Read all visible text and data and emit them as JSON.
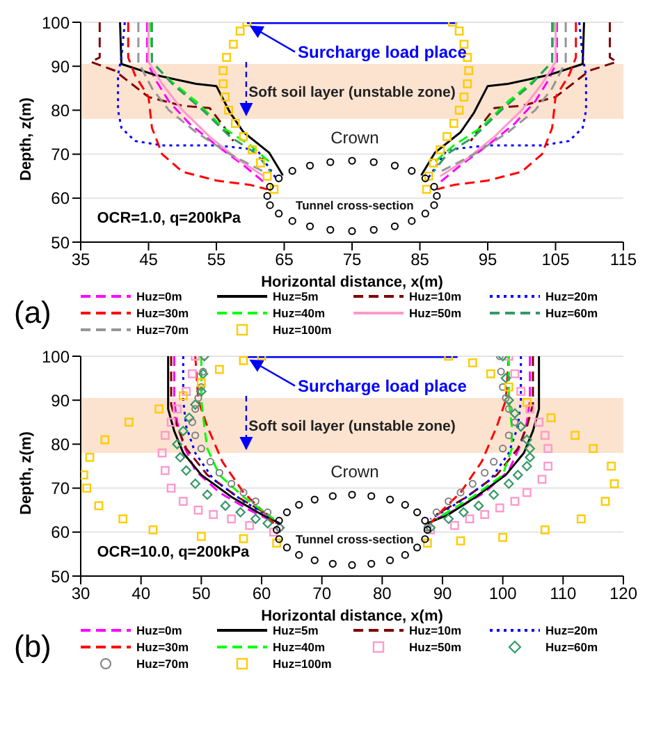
{
  "chart_data": [
    {
      "type": "line",
      "xlabel": "Horizontal distance, x(m)",
      "ylabel": "Depth, z(m)",
      "xlim": [
        35,
        115
      ],
      "xticks": [
        35,
        45,
        55,
        65,
        75,
        85,
        95,
        105,
        115
      ],
      "ylim": [
        50,
        100
      ],
      "yticks": [
        50,
        60,
        70,
        80,
        90,
        100
      ],
      "grid": "y",
      "legend": "bottom",
      "bands": [
        {
          "axis": "y",
          "from": 78,
          "to": 90.5,
          "label": "Soft soil layer (unstable zone)",
          "color": "#fbe3d0"
        }
      ],
      "annotations": [
        "Surcharge load place",
        "Crown",
        "Tunnel cross-section",
        "OCR=1.0, q=200kPa",
        "(a)"
      ],
      "series": [
        {
          "name": "Huz=0m",
          "color": "#ff00ff",
          "type": "line",
          "line_style": "dashed",
          "x": [
            44.8,
            44.8,
            46,
            48,
            51,
            55,
            59,
            62.5,
            null,
            105.2,
            105.2,
            104,
            102,
            99,
            95,
            91,
            87.5
          ],
          "values": [
            100,
            91,
            87,
            82,
            77,
            72,
            67.5,
            63,
            null,
            100,
            91,
            87,
            82,
            77,
            72,
            67.5,
            63
          ]
        },
        {
          "name": "Huz=5m",
          "color": "#000000",
          "type": "line",
          "line_style": "solid",
          "x": [
            40.8,
            41,
            46,
            52,
            55,
            57,
            59,
            62.8,
            64.8,
            null,
            109.2,
            109,
            104,
            98,
            95,
            93,
            91,
            87.2,
            85.2
          ],
          "values": [
            100,
            90.5,
            88,
            86,
            85.5,
            79.5,
            75,
            70.3,
            65.2,
            null,
            100,
            90.5,
            88,
            86,
            85.5,
            79.5,
            75,
            70.3,
            65.2
          ]
        },
        {
          "name": "Huz=10m",
          "color": "#800000",
          "type": "line",
          "line_style": "dashed",
          "x": [
            37.8,
            37.8,
            36.5,
            40,
            45,
            50,
            54,
            56,
            57.5,
            null,
            113,
            113,
            114,
            110,
            105,
            100,
            96,
            94,
            92.5
          ],
          "values": [
            100,
            92,
            91,
            89,
            83,
            81,
            80.5,
            76.5,
            73,
            null,
            100,
            92,
            91,
            89,
            83,
            81,
            80.5,
            76.5,
            73
          ]
        },
        {
          "name": "Huz=20m",
          "color": "#0000ff",
          "type": "line",
          "line_style": "dotted",
          "x": [
            41.5,
            41,
            40.5,
            40.5,
            41,
            43,
            47,
            55,
            61,
            64,
            null,
            108.5,
            109,
            109.5,
            109.5,
            109,
            107,
            103,
            95,
            89,
            86
          ],
          "values": [
            100,
            92,
            88,
            80,
            76,
            73,
            72,
            72,
            71,
            64,
            null,
            100,
            92,
            88,
            80,
            76,
            73,
            72,
            72,
            71,
            64
          ]
        },
        {
          "name": "Huz=30m",
          "color": "#ff0000",
          "type": "line",
          "line_style": "dashed",
          "x": [
            42,
            42,
            43,
            45,
            45.5,
            47,
            50,
            55,
            60,
            62.5,
            null,
            108,
            108,
            107,
            105,
            104.5,
            103,
            100,
            95,
            90,
            87.5
          ],
          "values": [
            100,
            92,
            88,
            83,
            76,
            70,
            66,
            64,
            63,
            62,
            null,
            100,
            92,
            88,
            83,
            76,
            70,
            66,
            64,
            63,
            62
          ]
        },
        {
          "name": "Huz=40m",
          "color": "#00ff00",
          "type": "line",
          "line_style": "dashed",
          "x": [
            45.3,
            45.5,
            48,
            52,
            56,
            60,
            63,
            null,
            104.7,
            104.5,
            102,
            98,
            94,
            90,
            87
          ],
          "values": [
            100,
            91,
            87,
            82,
            76,
            72,
            68,
            null,
            100,
            91,
            87,
            82,
            76,
            72,
            68
          ]
        },
        {
          "name": "Huz=50m",
          "color": "#ff99cc",
          "type": "line",
          "line_style": "solid",
          "x": [
            45,
            45,
            47,
            50,
            54,
            58,
            62,
            null,
            105,
            105,
            103,
            100,
            96,
            92,
            88
          ],
          "values": [
            100,
            91,
            86,
            80,
            74,
            69,
            65,
            null,
            100,
            91,
            86,
            80,
            74,
            69,
            65
          ]
        },
        {
          "name": "Huz=60m",
          "color": "#339966",
          "type": "line",
          "line_style": "dashed",
          "x": [
            45.5,
            45.5,
            48.5,
            53,
            57,
            61,
            63,
            null,
            104.5,
            104.5,
            101.5,
            97,
            93,
            89,
            87
          ],
          "values": [
            100,
            91,
            86,
            80,
            74,
            70,
            66,
            null,
            100,
            91,
            86,
            80,
            74,
            70,
            66
          ]
        },
        {
          "name": "Huz=70m",
          "color": "#969696",
          "type": "line",
          "line_style": "dashed",
          "x": [
            43.5,
            43.5,
            45.5,
            48,
            52,
            57,
            62,
            null,
            106.5,
            106.5,
            104.5,
            102,
            98,
            93,
            88
          ],
          "values": [
            100,
            91,
            85,
            80,
            75,
            70,
            66,
            null,
            100,
            91,
            85,
            80,
            75,
            70,
            66
          ]
        },
        {
          "name": "Huz=100m",
          "color": "#ffcc00",
          "type": "scatter",
          "marker": "square",
          "x": [
            59.5,
            58.5,
            57.5,
            56.5,
            56,
            56,
            56.3,
            56.8,
            57.8,
            59,
            60.3,
            61.5,
            62.5,
            63.5,
            89.8,
            90.8,
            91.5,
            92,
            92.2,
            92,
            91.5,
            90.8,
            90,
            89,
            88,
            87,
            86.3,
            86
          ],
          "values": [
            100,
            98,
            95,
            92,
            89,
            86,
            83,
            80,
            77,
            74,
            71,
            68,
            65,
            62,
            100,
            98,
            95,
            92,
            89,
            86,
            83,
            80,
            77,
            74,
            71,
            68,
            65,
            62
          ]
        },
        {
          "color": "#000000",
          "type": "scatter",
          "marker": "circle",
          "x": [
            87.5,
            87.1,
            85.8,
            83.8,
            81.3,
            78.2,
            75,
            71.8,
            68.8,
            66.2,
            64.2,
            62.9,
            62.5,
            62.9,
            64.2,
            66.2,
            68.8,
            71.8,
            75,
            78.2,
            81.3,
            83.8,
            85.8,
            87.1
          ],
          "values": [
            60.5,
            62.6,
            64.5,
            66.2,
            67.4,
            68.2,
            68.5,
            68.2,
            67.4,
            66.2,
            64.5,
            62.6,
            60.5,
            58.4,
            56.5,
            54.8,
            53.6,
            52.8,
            52.5,
            52.8,
            53.6,
            54.8,
            56.5,
            58.4
          ]
        },
        {
          "color": "#0000ff",
          "type": "line",
          "line_style": "solid",
          "x": [
            59.5,
            90.5
          ],
          "values": [
            100,
            100
          ]
        }
      ]
    },
    {
      "type": "line",
      "xlabel": "Horizontal distance, x(m)",
      "ylabel": "Depth, z(m)",
      "xlim": [
        30,
        120
      ],
      "xticks": [
        30,
        40,
        50,
        60,
        70,
        80,
        90,
        100,
        110,
        120
      ],
      "ylim": [
        50,
        100
      ],
      "yticks": [
        50,
        60,
        70,
        80,
        90,
        100
      ],
      "grid": "y",
      "legend": "bottom",
      "bands": [
        {
          "axis": "y",
          "from": 78,
          "to": 90.5,
          "label": "Soft soil layer (unstable zone)",
          "color": "#fbe3d0"
        }
      ],
      "annotations": [
        "Surcharge load place",
        "Crown",
        "Tunnel cross-section",
        "OCR=10.0, q=200kPa",
        "(b)"
      ],
      "series": [
        {
          "name": "Huz=0m",
          "color": "#ff00ff",
          "type": "line",
          "line_style": "dashed",
          "x": [
            45.5,
            45.5,
            46,
            47,
            49,
            53,
            58,
            62.5,
            null,
            104.5,
            104.5,
            104,
            103,
            101,
            97,
            92,
            87.5
          ],
          "values": [
            100,
            90,
            85,
            80,
            74,
            69,
            65,
            62,
            null,
            100,
            90,
            85,
            80,
            74,
            69,
            65,
            62
          ]
        },
        {
          "name": "Huz=5m",
          "color": "#000000",
          "type": "line",
          "line_style": "solid",
          "x": [
            44.5,
            44.5,
            45.5,
            47,
            50,
            55,
            60,
            63,
            null,
            106,
            106,
            105,
            103.5,
            100.5,
            95.5,
            91,
            87.5
          ],
          "values": [
            100,
            88,
            83,
            78,
            73,
            68,
            64,
            62,
            null,
            100,
            88,
            83,
            78,
            73,
            68,
            64,
            62
          ]
        },
        {
          "name": "Huz=10m",
          "color": "#800000",
          "type": "line",
          "line_style": "dashed",
          "x": [
            45,
            45,
            46,
            47.5,
            51,
            56,
            61,
            null,
            105,
            105,
            104,
            102.5,
            99,
            94,
            89
          ],
          "values": [
            100,
            89,
            84,
            79,
            73,
            68,
            64,
            null,
            100,
            89,
            84,
            79,
            73,
            68,
            64
          ]
        },
        {
          "name": "Huz=20m",
          "color": "#0000ff",
          "type": "line",
          "line_style": "dotted",
          "x": [
            47,
            47,
            47.5,
            49,
            52,
            57,
            62,
            null,
            103,
            103,
            102.5,
            101,
            98,
            93,
            88
          ],
          "values": [
            100,
            90,
            84,
            78,
            72,
            67,
            63,
            null,
            100,
            90,
            84,
            78,
            72,
            67,
            63
          ]
        },
        {
          "name": "Huz=30m",
          "color": "#ff0000",
          "type": "line",
          "line_style": "dashed",
          "x": [
            49,
            49.5,
            51,
            53.5,
            57,
            60,
            62,
            null,
            101,
            100.5,
            99,
            96.5,
            93,
            90,
            88
          ],
          "values": [
            100,
            90,
            84,
            76,
            69,
            65,
            62,
            null,
            100,
            90,
            84,
            76,
            69,
            65,
            62
          ]
        },
        {
          "name": "Huz=40m",
          "color": "#00ff00",
          "type": "line",
          "line_style": "dashed",
          "x": [
            50,
            50,
            50.5,
            51,
            53,
            57,
            62,
            null,
            101,
            101,
            101.5,
            101.5,
            100,
            95,
            89
          ],
          "values": [
            100,
            90,
            84,
            79,
            73,
            68,
            63,
            null,
            100,
            90,
            84,
            79,
            73,
            68,
            63
          ]
        },
        {
          "name": "Huz=50m",
          "color": "#ff99cc",
          "type": "scatter",
          "marker": "square",
          "x": [
            49,
            48.5,
            47.5,
            46,
            45,
            44,
            43.5,
            44,
            45,
            47,
            49.5,
            52,
            55,
            58,
            62,
            101,
            102,
            103,
            104.5,
            106,
            107,
            107.5,
            107.5,
            106.5,
            104,
            102,
            99.5,
            97,
            94.5,
            92,
            88
          ],
          "values": [
            100,
            96,
            92,
            88,
            85,
            82,
            78,
            74,
            70,
            67,
            65,
            64,
            63,
            61.5,
            60,
            100,
            96,
            92,
            88,
            85,
            82,
            79,
            75,
            72,
            69,
            67,
            65.5,
            64,
            63,
            61.5,
            60.5
          ]
        },
        {
          "name": "Huz=60m",
          "color": "#339966",
          "type": "scatter",
          "marker": "diamond",
          "x": [
            50.5,
            50.3,
            50,
            49,
            48,
            47,
            46,
            46.5,
            47.5,
            49,
            51,
            54,
            56.5,
            59,
            61,
            63,
            100,
            100.5,
            101,
            102,
            103,
            104,
            104.5,
            104.5,
            104,
            102.5,
            101,
            98.5,
            96,
            93.5,
            91,
            88
          ],
          "values": [
            100,
            96,
            92,
            89,
            86,
            83,
            80,
            77,
            74,
            71,
            68.5,
            66,
            64.5,
            63,
            62,
            61,
            100,
            95,
            90,
            87,
            84,
            81,
            79,
            77,
            75,
            73,
            71,
            68.5,
            66,
            64.5,
            63,
            61
          ]
        },
        {
          "name": "Huz=70m",
          "color": "#808080",
          "type": "scatter",
          "marker": "circle",
          "x": [
            50.5,
            50.3,
            50,
            49.5,
            49,
            48.5,
            49,
            50,
            51.5,
            53,
            55,
            57,
            59,
            61,
            63,
            99.5,
            99.7,
            100,
            100.5,
            101,
            102,
            101,
            100,
            98.5,
            97,
            95,
            93,
            91,
            89,
            87.5
          ],
          "values": [
            100,
            96.5,
            93,
            90.5,
            88,
            85,
            82,
            79,
            76,
            73.5,
            71,
            69,
            67,
            64.5,
            61,
            100,
            96.5,
            93,
            90.5,
            88,
            85,
            82,
            79,
            76,
            73.5,
            71,
            69,
            67,
            64.5,
            61
          ]
        },
        {
          "name": "Huz=100m",
          "color": "#ffcc00",
          "type": "scatter",
          "marker": "square",
          "x": [
            60,
            57,
            53,
            50,
            47,
            43,
            38,
            34,
            31.5,
            30.5,
            31,
            33,
            37,
            42,
            50,
            57,
            62.5,
            91,
            95,
            98,
            101,
            104,
            108,
            112,
            115,
            118,
            118.5,
            117,
            113,
            107,
            100,
            93,
            87.5
          ],
          "values": [
            100,
            99,
            97,
            94,
            91,
            88,
            85,
            81,
            77,
            73,
            70,
            66,
            63,
            60.5,
            59,
            58.5,
            57.5,
            100,
            98.5,
            96,
            93,
            89.5,
            86,
            82,
            79,
            75,
            71,
            67,
            63,
            60.5,
            58.8,
            58,
            57.5
          ]
        },
        {
          "color": "#000000",
          "type": "scatter",
          "marker": "circle",
          "x": [
            87.5,
            87.1,
            85.8,
            83.8,
            81.3,
            78.2,
            75,
            71.8,
            68.8,
            66.2,
            64.2,
            62.9,
            62.5,
            62.9,
            64.2,
            66.2,
            68.8,
            71.8,
            75,
            78.2,
            81.3,
            83.8,
            85.8,
            87.1
          ],
          "values": [
            60.5,
            62.6,
            64.5,
            66.2,
            67.4,
            68.2,
            68.5,
            68.2,
            67.4,
            66.2,
            64.5,
            62.6,
            60.5,
            58.4,
            56.5,
            54.8,
            53.6,
            52.8,
            52.5,
            52.8,
            53.6,
            54.8,
            56.5,
            58.4
          ]
        },
        {
          "color": "#0000ff",
          "type": "line",
          "line_style": "solid",
          "x": [
            57.5,
            92.5
          ],
          "values": [
            100,
            100
          ]
        }
      ]
    }
  ]
}
